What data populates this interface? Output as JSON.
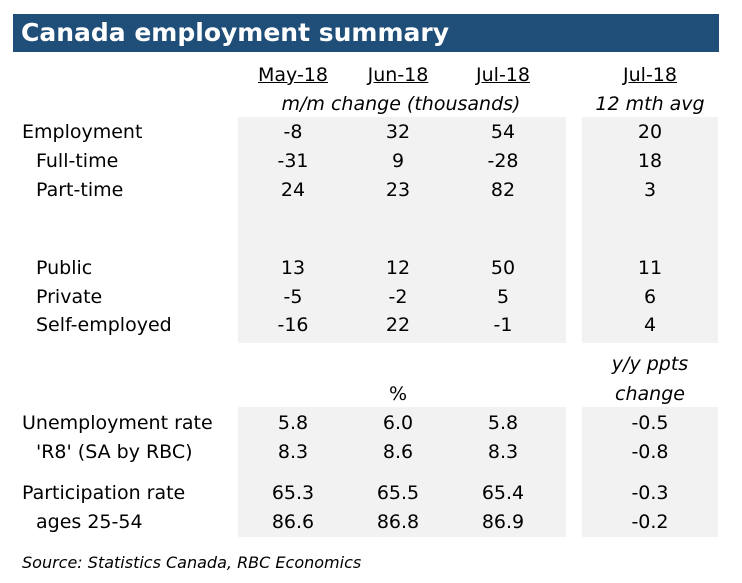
{
  "title": "Canada employment summary",
  "months": [
    "May-18",
    "Jun-18",
    "Jul-18"
  ],
  "avg_month": "Jul-18",
  "mm_label": "m/m change (thousands)",
  "avg_label": "12 mth avg",
  "emp_rows": [
    {
      "label": "Employment",
      "v1": "-8",
      "v2": "32",
      "v3": "54",
      "avg": "20"
    },
    {
      "label": "Full-time",
      "v1": "-31",
      "v2": "9",
      "v3": "-28",
      "avg": "18"
    },
    {
      "label": "Part-time",
      "v1": "24",
      "v2": "23",
      "v3": "82",
      "avg": "3"
    },
    {
      "label": "Public",
      "v1": "13",
      "v2": "12",
      "v3": "50",
      "avg": "11"
    },
    {
      "label": "Private",
      "v1": "-5",
      "v2": "-2",
      "v3": "5",
      "avg": "6"
    },
    {
      "label": "Self-employed",
      "v1": "-16",
      "v2": "22",
      "v3": "-1",
      "avg": "4"
    }
  ],
  "pct_label": "%",
  "yy_label_1": "y/y ppts",
  "yy_label_2": "change",
  "rate_rows": [
    {
      "label": "Unemployment rate",
      "v1": "5.8",
      "v2": "6.0",
      "v3": "5.8",
      "avg": "-0.5"
    },
    {
      "label": "'R8' (SA by RBC)",
      "v1": "8.3",
      "v2": "8.6",
      "v3": "8.3",
      "avg": "-0.8"
    },
    {
      "label": "Participation rate",
      "v1": "65.3",
      "v2": "65.5",
      "v3": "65.4",
      "avg": "-0.3"
    },
    {
      "label": "ages 25-54",
      "v1": "86.6",
      "v2": "86.8",
      "v3": "86.9",
      "avg": "-0.2"
    }
  ],
  "source": "Source:  Statistics Canada, RBC Economics",
  "colors": {
    "title_bg": "#1f4e79",
    "shade": "#f2f2f2"
  }
}
